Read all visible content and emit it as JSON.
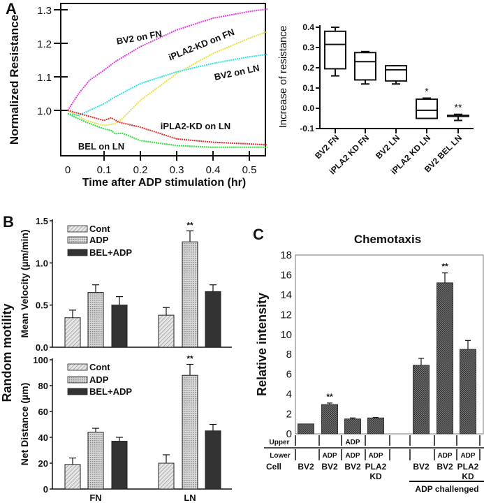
{
  "panels": {
    "a": "A",
    "b": "B",
    "c": "C"
  },
  "colors": {
    "bv2_fn": "#e040e0",
    "ipla2_kd_fn": "#e8e040",
    "bv2_ln": "#30e0e8",
    "ipla2_kd_ln": "#e03030",
    "bel_ln": "#30e040",
    "bel_adp": "#333333"
  },
  "chart_data": [
    {
      "type": "line",
      "xlabel": "Time after ADP stimulation (hr)",
      "ylabel": "Normalized Resistance",
      "xlim": [
        0,
        0.55
      ],
      "ylim": [
        0.865,
        1.31
      ],
      "xticks": [
        "0",
        "0.1",
        "0.2",
        "0.3",
        "0.4",
        "0.5"
      ],
      "yticks": [
        "1.0",
        "1.1",
        "1.2",
        "1.3"
      ],
      "series": [
        {
          "name": "BV2 on FN",
          "color": "#e040e0",
          "x": [
            0,
            0.03,
            0.06,
            0.1,
            0.13,
            0.2,
            0.3,
            0.4,
            0.5,
            0.55
          ],
          "y": [
            1.0,
            1.05,
            1.09,
            1.12,
            1.145,
            1.19,
            1.24,
            1.275,
            1.295,
            1.302
          ]
        },
        {
          "name": "iPLA2-KD on FN",
          "color": "#e8e040",
          "x": [
            0,
            0.05,
            0.1,
            0.13,
            0.15,
            0.2,
            0.3,
            0.4,
            0.5,
            0.55
          ],
          "y": [
            1.0,
            0.97,
            0.955,
            0.96,
            0.975,
            1.03,
            1.11,
            1.17,
            1.215,
            1.235
          ]
        },
        {
          "name": "BV2 on LN",
          "color": "#30e0e8",
          "x": [
            0,
            0.03,
            0.1,
            0.13,
            0.2,
            0.3,
            0.4,
            0.5,
            0.55
          ],
          "y": [
            0.99,
            0.985,
            1.02,
            1.04,
            1.08,
            1.115,
            1.14,
            1.16,
            1.167
          ]
        },
        {
          "name": "iPLA2-KD on LN",
          "color": "#e03030",
          "x": [
            0,
            0.05,
            0.1,
            0.12,
            0.14,
            0.2,
            0.3,
            0.4,
            0.5,
            0.55
          ],
          "y": [
            1.0,
            0.985,
            0.97,
            0.978,
            0.965,
            0.95,
            0.915,
            0.905,
            0.9,
            0.897
          ]
        },
        {
          "name": "BEL on LN",
          "color": "#30e040",
          "x": [
            0,
            0.05,
            0.1,
            0.12,
            0.13,
            0.15,
            0.2,
            0.3,
            0.4,
            0.55
          ],
          "y": [
            0.99,
            0.965,
            0.945,
            0.94,
            0.93,
            0.932,
            0.91,
            0.895,
            0.89,
            0.89
          ]
        }
      ]
    },
    {
      "type": "box",
      "ylabel": "Increase of resistance",
      "ylim": [
        -0.1,
        0.4
      ],
      "yticks": [
        "-0.1",
        "0.0",
        "0.1",
        "0.2",
        "0.3",
        "0.4"
      ],
      "categories": [
        "BV2 FN",
        "iPLA2 KD FN",
        "BV2 LN",
        "iPLA2 KD LN",
        "BV2 BEL LN"
      ],
      "boxes": [
        {
          "min": 0.16,
          "q1": 0.195,
          "median": 0.315,
          "q3": 0.38,
          "max": 0.4,
          "sig": ""
        },
        {
          "min": 0.12,
          "q1": 0.14,
          "median": 0.23,
          "q3": 0.275,
          "max": 0.28,
          "sig": ""
        },
        {
          "min": 0.12,
          "q1": 0.135,
          "median": 0.19,
          "q3": 0.21,
          "max": 0.21,
          "sig": ""
        },
        {
          "min": -0.05,
          "q1": -0.05,
          "median": -0.01,
          "q3": 0.045,
          "max": 0.05,
          "sig": "*"
        },
        {
          "min": -0.06,
          "q1": -0.04,
          "median": -0.037,
          "q3": -0.035,
          "max": -0.03,
          "sig": "**"
        }
      ]
    },
    {
      "type": "bar",
      "group_label": "Random motility",
      "categories": [
        "FN",
        "LN"
      ],
      "legend": [
        "Cont",
        "ADP",
        "BEL+ADP"
      ],
      "panels": [
        {
          "ylabel": "Mean Velocity (µm/min)",
          "ylim": [
            0,
            1.5
          ],
          "yticks": [
            "0.0",
            "0.5",
            "1.0",
            "1.5"
          ],
          "series": [
            {
              "name": "Cont",
              "values": [
                0.35,
                0.38
              ],
              "errors": [
                0.09,
                0.09
              ],
              "sig": [
                "",
                ""
              ]
            },
            {
              "name": "ADP",
              "values": [
                0.65,
                1.25
              ],
              "errors": [
                0.09,
                0.13
              ],
              "sig": [
                "",
                "**"
              ]
            },
            {
              "name": "BEL+ADP",
              "values": [
                0.5,
                0.66
              ],
              "errors": [
                0.1,
                0.08
              ],
              "sig": [
                "",
                ""
              ]
            }
          ]
        },
        {
          "ylabel": "Net Distance (µm)",
          "ylim": [
            0,
            100
          ],
          "yticks": [
            "0",
            "20",
            "40",
            "60",
            "80",
            "100"
          ],
          "series": [
            {
              "name": "Cont",
              "values": [
                19,
                20
              ],
              "errors": [
                5,
                6.5
              ],
              "sig": [
                "",
                ""
              ]
            },
            {
              "name": "ADP",
              "values": [
                44,
                88
              ],
              "errors": [
                3,
                8.5
              ],
              "sig": [
                "",
                "**"
              ]
            },
            {
              "name": "BEL+ADP",
              "values": [
                37,
                45
              ],
              "errors": [
                3,
                5
              ],
              "sig": [
                "",
                ""
              ]
            }
          ]
        }
      ]
    },
    {
      "type": "bar",
      "title": "Chemotaxis",
      "ylabel": "Relative intensity",
      "ylim": [
        0,
        18
      ],
      "yticks": [
        "0",
        "2",
        "4",
        "6",
        "8",
        "10",
        "12",
        "14",
        "16",
        "18"
      ],
      "values": [
        1.0,
        2.95,
        1.5,
        1.6,
        6.9,
        15.2,
        8.5
      ],
      "errors": [
        0.0,
        0.15,
        0.1,
        0.05,
        0.7,
        1.0,
        0.9
      ],
      "sig": [
        "",
        "**",
        "",
        "",
        "",
        "**",
        ""
      ],
      "table": {
        "row_labels": {
          "upper": "Upper",
          "lower": "Lower",
          "cell": "Cell"
        },
        "columns": [
          {
            "upper": "",
            "lower": "",
            "cell": [
              "BV2"
            ]
          },
          {
            "upper": "",
            "lower": "ADP",
            "cell": [
              "BV2"
            ]
          },
          {
            "upper": "ADP",
            "lower": "ADP",
            "cell": [
              "BV2"
            ]
          },
          {
            "upper": "",
            "lower": "ADP",
            "cell": [
              "PLA2",
              "KD"
            ]
          },
          {
            "upper": "",
            "lower": "",
            "cell": [
              "BV2"
            ]
          },
          {
            "upper": "",
            "lower": "ADP",
            "cell": [
              "BV2"
            ]
          },
          {
            "upper": "",
            "lower": "ADP",
            "cell": [
              "PLA2",
              "KD"
            ]
          }
        ],
        "group_label": "ADP challenged"
      }
    }
  ]
}
